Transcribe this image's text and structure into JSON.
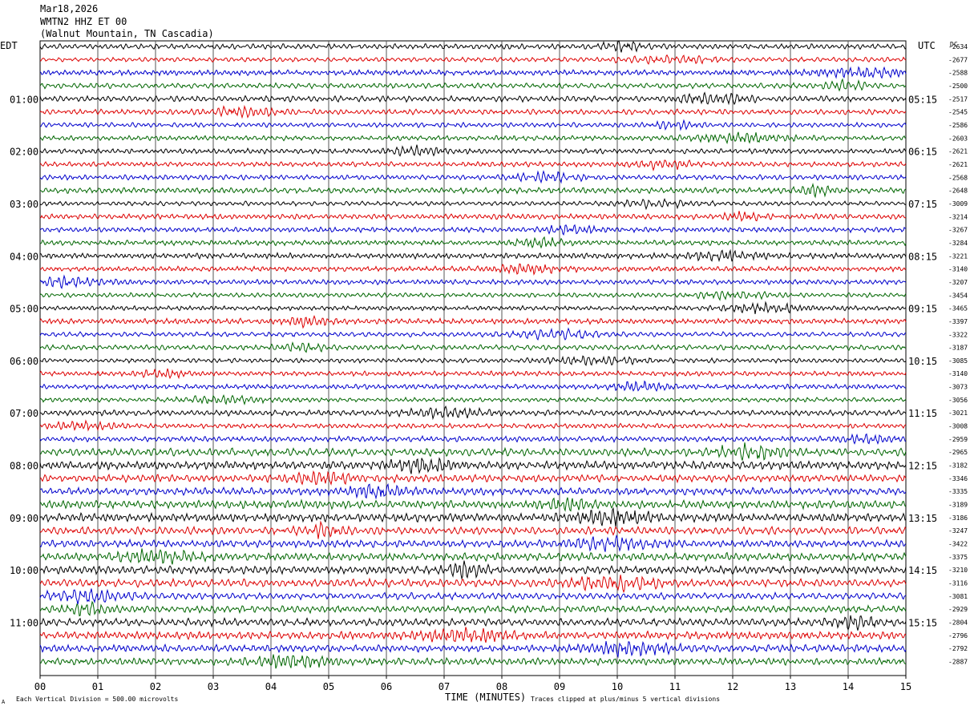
{
  "header": {
    "date": "Mar18,2026",
    "station": "WMTN2 HHZ ET 00",
    "location": "(Walnut Mountain, TN Cascadia)"
  },
  "left_axis_label": "EDT",
  "right_axis_label": "UTC",
  "dc_label": "DC",
  "footer": {
    "scale_note": "Each Vertical Division =  500.00 microvolts",
    "clip_note": "Traces clipped at plus/minus 5 vertical divisions",
    "corner_mark": "A"
  },
  "chart_data": {
    "type": "line",
    "title": "",
    "xlabel": "TIME (MINUTES)",
    "xlim": [
      0,
      15
    ],
    "x_ticks": [
      "00",
      "01",
      "02",
      "03",
      "04",
      "05",
      "06",
      "07",
      "08",
      "09",
      "10",
      "11",
      "12",
      "13",
      "14",
      "15"
    ],
    "trace_count": 48,
    "trace_minutes": 15,
    "trace_colors": [
      "#000000",
      "#dd0000",
      "#0000cc",
      "#006600"
    ],
    "grid": true,
    "left_hour_labels": [
      "01:00",
      "02:00",
      "03:00",
      "04:00",
      "05:00",
      "06:00",
      "07:00",
      "08:00",
      "09:00",
      "10:00",
      "11:00"
    ],
    "right_hour_labels": [
      "05:15",
      "06:15",
      "07:15",
      "08:15",
      "09:15",
      "10:15",
      "11:15",
      "12:15",
      "13:15",
      "14:15",
      "15:15"
    ],
    "dc_offsets": [
      "-2634",
      "-2677",
      "-2588",
      "-2500",
      "-2517",
      "-2545",
      "-2586",
      "-2603",
      "-2621",
      "-2621",
      "-2568",
      "-2648",
      "-3009",
      "-3214",
      "-3267",
      "-3284",
      "-3221",
      "-3140",
      "-3207",
      "-3454",
      "-3465",
      "-3397",
      "-3322",
      "-3187",
      "-3085",
      "-3140",
      "-3073",
      "-3056",
      "-3021",
      "-3008",
      "-2959",
      "-2965",
      "-3182",
      "-3346",
      "-3335",
      "-3189",
      "-3186",
      "-3247",
      "-3422",
      "-3375",
      "-3210",
      "-3116",
      "-3081",
      "-2929",
      "-2804",
      "-2796",
      "-2792",
      "-2887"
    ]
  }
}
